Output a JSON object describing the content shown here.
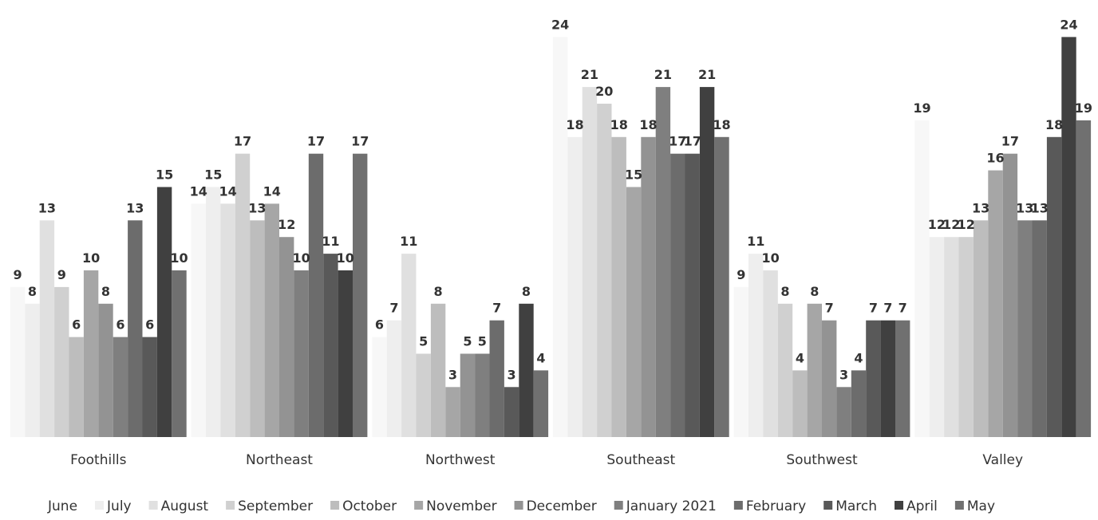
{
  "chart_data": {
    "type": "bar",
    "title": "",
    "xlabel": "",
    "ylabel": "",
    "ylim": [
      0,
      25
    ],
    "grid": false,
    "legend_position": "bottom",
    "categories": [
      "Foothills",
      "Northeast",
      "Northwest",
      "Southeast",
      "Southwest",
      "Valley"
    ],
    "series": [
      {
        "name": "June",
        "color": "#f7f7f7",
        "values": [
          9,
          14,
          6,
          24,
          9,
          19
        ]
      },
      {
        "name": "July",
        "color": "#eeeeee",
        "values": [
          8,
          15,
          7,
          18,
          11,
          12
        ]
      },
      {
        "name": "August",
        "color": "#e0e0e0",
        "values": [
          13,
          14,
          11,
          21,
          10,
          12
        ]
      },
      {
        "name": "September",
        "color": "#d0d0d0",
        "values": [
          9,
          17,
          5,
          20,
          8,
          12
        ]
      },
      {
        "name": "October",
        "color": "#bdbdbd",
        "values": [
          6,
          13,
          8,
          18,
          4,
          13
        ]
      },
      {
        "name": "November",
        "color": "#a6a6a6",
        "values": [
          10,
          14,
          3,
          15,
          8,
          16
        ]
      },
      {
        "name": "December",
        "color": "#939393",
        "values": [
          8,
          12,
          5,
          18,
          7,
          17
        ]
      },
      {
        "name": "January 2021",
        "color": "#7f7f7f",
        "values": [
          6,
          10,
          5,
          21,
          3,
          13
        ]
      },
      {
        "name": "February",
        "color": "#6c6c6c",
        "values": [
          13,
          17,
          7,
          17,
          4,
          13
        ]
      },
      {
        "name": "March",
        "color": "#595959",
        "values": [
          6,
          11,
          3,
          17,
          7,
          18
        ]
      },
      {
        "name": "April",
        "color": "#404040",
        "values": [
          15,
          10,
          8,
          21,
          7,
          24
        ]
      },
      {
        "name": "May",
        "color": "#707070",
        "values": [
          10,
          17,
          4,
          18,
          7,
          19
        ]
      }
    ]
  }
}
